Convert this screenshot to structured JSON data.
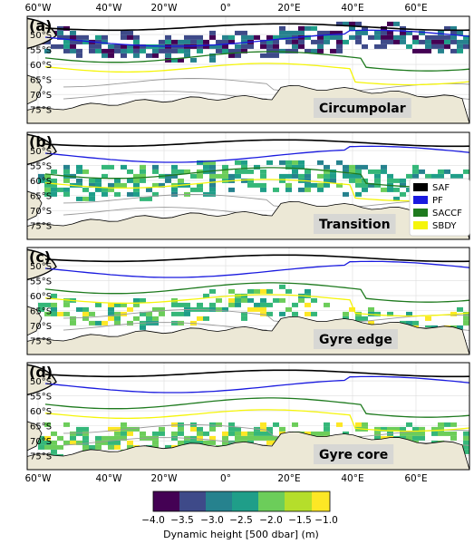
{
  "top_axis": {
    "lon_labels": [
      "60°W",
      "40°W",
      "20°W",
      "0°",
      "20°E",
      "40°E",
      "60°E"
    ]
  },
  "bottom_axis": {
    "lon_labels": [
      "60°W",
      "40°W",
      "20°W",
      "0°",
      "20°E",
      "40°E",
      "60°E"
    ]
  },
  "lat_labels": [
    "50°S",
    "55°S",
    "60°S",
    "65°S",
    "70°S",
    "75°S"
  ],
  "panels": [
    {
      "letter": "(a)",
      "title": "Circumpolar"
    },
    {
      "letter": "(b)",
      "title": "Transition"
    },
    {
      "letter": "(c)",
      "title": "Gyre edge"
    },
    {
      "letter": "(d)",
      "title": "Gyre core"
    }
  ],
  "legend": {
    "items": [
      {
        "label": "SAF",
        "color": "#000000"
      },
      {
        "label": "PF",
        "color": "#1a1adf"
      },
      {
        "label": "SACCF",
        "color": "#1e7a1e"
      },
      {
        "label": "SBDY",
        "color": "#f5f50a"
      }
    ]
  },
  "colorbar": {
    "label": "Dynamic height [500 dbar] (m)",
    "ticks": [
      "−4.0",
      "−3.5",
      "−3.0",
      "−2.5",
      "−2.0",
      "−1.5",
      "−1.0"
    ],
    "bins": [
      "#440154",
      "#3e4a89",
      "#26828e",
      "#1f9e89",
      "#35b779",
      "#6ccd5a",
      "#fde725"
    ]
  },
  "colors": {
    "land": "#ece8d6",
    "coast": "#000000",
    "ice_contour": "#9a9a9a"
  }
}
